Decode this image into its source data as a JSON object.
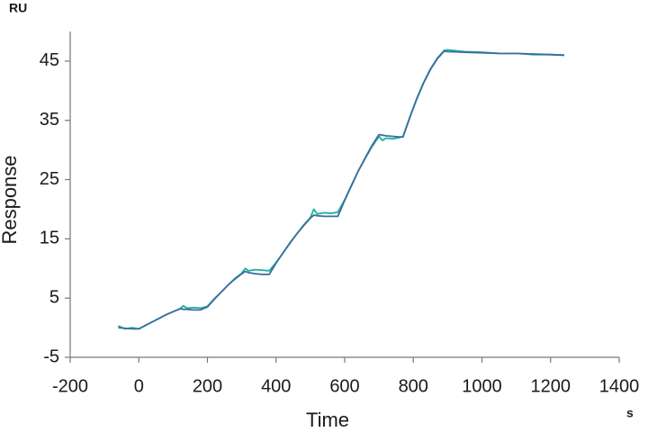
{
  "chart_data": {
    "type": "line",
    "y_unit": "RU",
    "x_unit": "s",
    "ylabel": "Response",
    "xlabel": "Time",
    "xlim": [
      -200,
      1400
    ],
    "xticks": [
      -200,
      0,
      200,
      400,
      600,
      800,
      1000,
      1200,
      1400
    ],
    "ylim": [
      -5,
      50
    ],
    "yticks": [
      -5,
      5,
      15,
      25,
      35,
      45
    ],
    "x": [
      -60,
      -40,
      -20,
      0,
      20,
      40,
      60,
      80,
      100,
      120,
      130,
      140,
      160,
      180,
      200,
      220,
      240,
      260,
      280,
      300,
      310,
      320,
      340,
      360,
      380,
      400,
      420,
      440,
      460,
      480,
      500,
      510,
      520,
      540,
      560,
      580,
      600,
      620,
      640,
      660,
      680,
      700,
      710,
      720,
      740,
      760,
      770,
      790,
      810,
      830,
      850,
      870,
      890,
      900,
      950,
      1000,
      1050,
      1100,
      1150,
      1200,
      1240
    ],
    "series": [
      {
        "color": "#1fae9c",
        "values": [
          0.3,
          -0.2,
          0,
          -0.2,
          0.4,
          1.0,
          1.6,
          2.2,
          2.7,
          3.2,
          3.7,
          3.3,
          3.4,
          3.3,
          3.6,
          4.9,
          6.0,
          7.2,
          8.3,
          9.2,
          10.0,
          9.6,
          9.8,
          9.7,
          9.6,
          11.0,
          12.6,
          14.2,
          15.8,
          17.3,
          18.6,
          20.0,
          19.2,
          19.4,
          19.3,
          19.5,
          21.6,
          24.1,
          26.5,
          28.6,
          30.6,
          32.3,
          31.6,
          32.0,
          31.9,
          32.1,
          32.3,
          35.6,
          38.7,
          41.4,
          43.7,
          45.5,
          46.8,
          46.9,
          46.6,
          46.5,
          46.3,
          46.3,
          46.1,
          46.1,
          46.0
        ]
      },
      {
        "color": "#3a6e9e",
        "values": [
          0,
          -0.1,
          -0.2,
          -0.2,
          0.4,
          1.0,
          1.6,
          2.2,
          2.7,
          3.2,
          3.1,
          3.1,
          3.0,
          3.0,
          3.5,
          4.8,
          6.0,
          7.2,
          8.2,
          9.1,
          9.5,
          9.3,
          9.1,
          9.0,
          9.0,
          10.9,
          12.6,
          14.3,
          15.8,
          17.2,
          18.5,
          19.0,
          18.9,
          18.8,
          18.8,
          18.8,
          21.5,
          24.0,
          26.5,
          28.7,
          30.8,
          32.6,
          32.5,
          32.4,
          32.3,
          32.2,
          32.2,
          35.5,
          38.6,
          41.3,
          43.6,
          45.4,
          46.7,
          46.6,
          46.5,
          46.4,
          46.3,
          46.3,
          46.2,
          46.1,
          46.0
        ]
      }
    ]
  }
}
